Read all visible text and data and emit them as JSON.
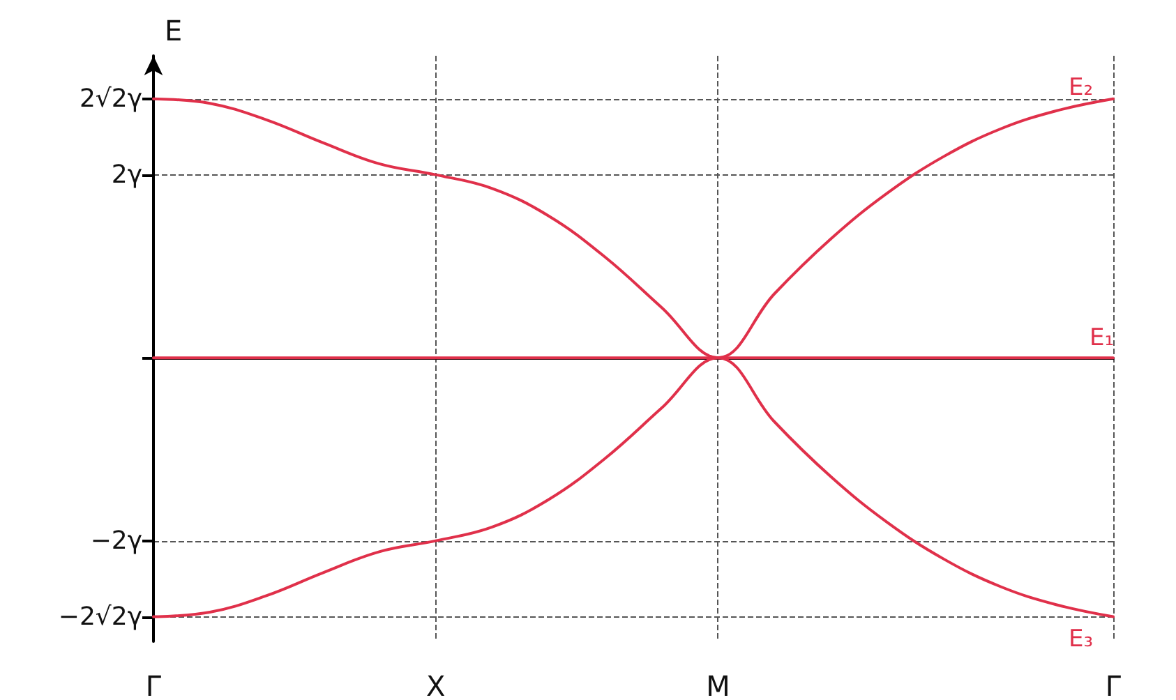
{
  "chart_data": {
    "type": "line",
    "ylabel": "E",
    "legend": false,
    "grid": true,
    "line_style": "solid",
    "categories": [
      "Γ",
      null,
      null,
      null,
      null,
      "X",
      null,
      null,
      null,
      null,
      "M",
      null,
      null,
      null,
      null,
      null,
      null,
      "Γ"
    ],
    "ylim": [
      -3.1,
      3.3
    ],
    "yticks": [
      {
        "value": -2.83,
        "label": "−2√2γ"
      },
      {
        "value": -2,
        "label": "−2γ"
      },
      {
        "value": 0,
        "label": null
      },
      {
        "value": 2,
        "label": "2γ"
      },
      {
        "value": 2.83,
        "label": "2√2γ"
      }
    ],
    "series": [
      {
        "name": "E₂",
        "color": "#e0304a",
        "values": [
          2.83,
          2.78,
          2.6,
          2.35,
          2.12,
          2.0,
          1.85,
          1.55,
          1.1,
          0.55,
          0,
          0.7,
          1.3,
          1.8,
          2.2,
          2.5,
          2.7,
          2.83
        ]
      },
      {
        "name": "E₁",
        "color": "#e0304a",
        "values": [
          0,
          0,
          0,
          0,
          0,
          0,
          0,
          0,
          0,
          0,
          0,
          0,
          0,
          0,
          0,
          0,
          0,
          0
        ]
      },
      {
        "name": "E₃",
        "color": "#e0304a",
        "values": [
          -2.83,
          -2.78,
          -2.6,
          -2.35,
          -2.12,
          -2.0,
          -1.85,
          -1.55,
          -1.1,
          -0.55,
          0,
          -0.7,
          -1.3,
          -1.8,
          -2.2,
          -2.5,
          -2.7,
          -2.83
        ]
      }
    ]
  }
}
